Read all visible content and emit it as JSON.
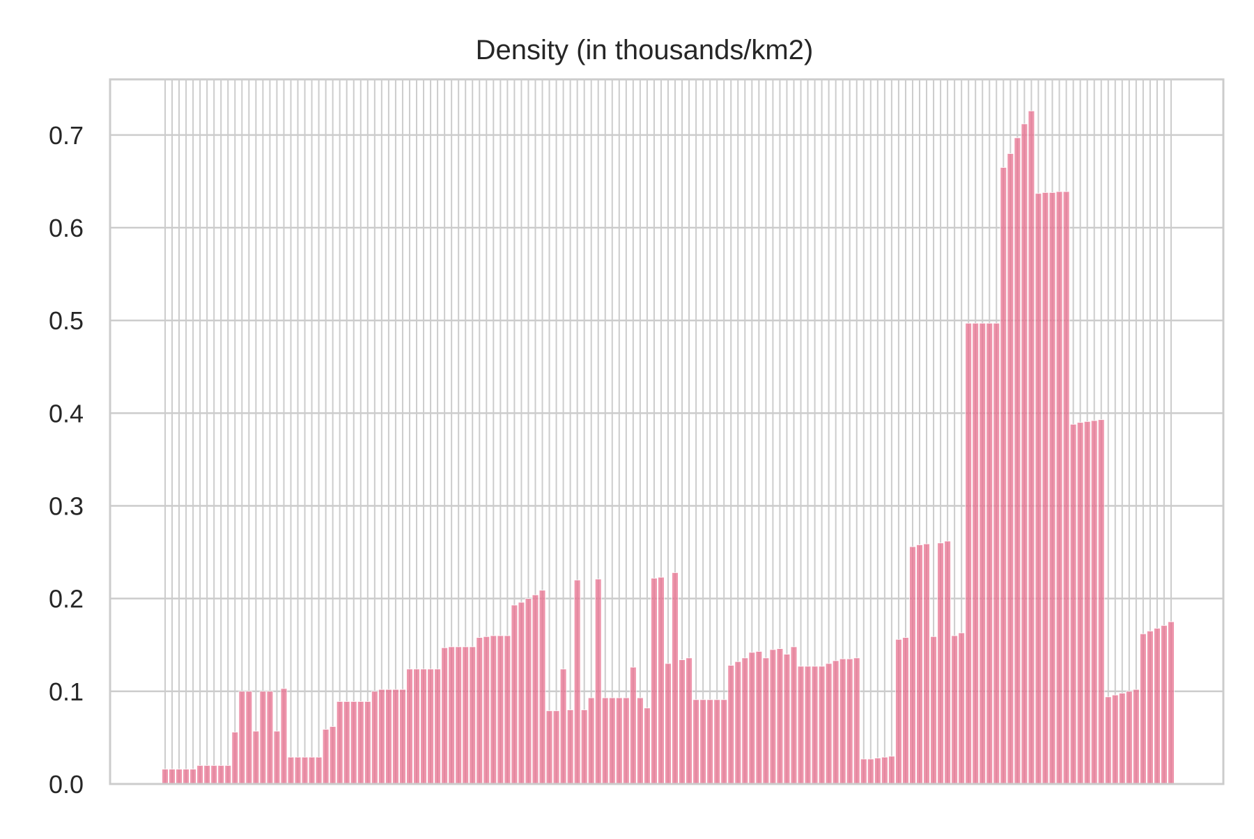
{
  "chart_data": {
    "type": "bar",
    "title": "Density (in thousands/km2)",
    "xlabel": "",
    "ylabel": "",
    "ylim": [
      0,
      0.76
    ],
    "yticks": [
      "0.0",
      "0.1",
      "0.2",
      "0.3",
      "0.4",
      "0.5",
      "0.6",
      "0.7"
    ],
    "x_tick_labels_shown": false,
    "grid": true,
    "legend": "none",
    "bar_color": "#e8708f",
    "bar_opacity": 0.75,
    "grid_color": "#cccccc",
    "values": [
      0.016,
      0.016,
      0.016,
      0.016,
      0.016,
      0.02,
      0.02,
      0.02,
      0.02,
      0.02,
      0.056,
      0.1,
      0.1,
      0.057,
      0.1,
      0.1,
      0.057,
      0.103,
      0.029,
      0.029,
      0.029,
      0.029,
      0.029,
      0.059,
      0.062,
      0.089,
      0.089,
      0.089,
      0.089,
      0.089,
      0.1,
      0.102,
      0.102,
      0.102,
      0.102,
      0.124,
      0.124,
      0.124,
      0.124,
      0.124,
      0.147,
      0.148,
      0.148,
      0.148,
      0.148,
      0.158,
      0.159,
      0.16,
      0.16,
      0.16,
      0.193,
      0.196,
      0.2,
      0.204,
      0.209,
      0.079,
      0.079,
      0.124,
      0.08,
      0.22,
      0.08,
      0.093,
      0.221,
      0.093,
      0.093,
      0.093,
      0.093,
      0.126,
      0.093,
      0.082,
      0.222,
      0.223,
      0.13,
      0.228,
      0.134,
      0.136,
      0.091,
      0.091,
      0.091,
      0.091,
      0.091,
      0.128,
      0.132,
      0.136,
      0.142,
      0.143,
      0.136,
      0.145,
      0.146,
      0.14,
      0.148,
      0.127,
      0.127,
      0.127,
      0.127,
      0.13,
      0.133,
      0.135,
      0.135,
      0.136,
      0.027,
      0.027,
      0.028,
      0.029,
      0.03,
      0.156,
      0.158,
      0.256,
      0.258,
      0.259,
      0.159,
      0.26,
      0.262,
      0.16,
      0.163,
      0.497,
      0.497,
      0.497,
      0.497,
      0.497,
      0.665,
      0.68,
      0.697,
      0.712,
      0.726,
      0.637,
      0.638,
      0.638,
      0.639,
      0.639,
      0.388,
      0.39,
      0.391,
      0.392,
      0.393,
      0.094,
      0.096,
      0.098,
      0.1,
      0.102,
      0.162,
      0.165,
      0.168,
      0.171,
      0.175
    ]
  }
}
